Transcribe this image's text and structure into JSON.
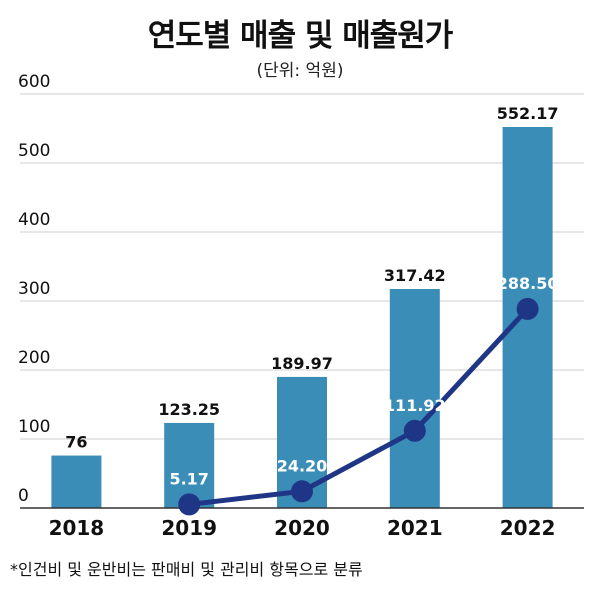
{
  "chart_data": {
    "type": "bar",
    "title": "연도별 매출 및 매출원가",
    "subtitle": "(단위: 억원)",
    "categories": [
      "2018",
      "2019",
      "2020",
      "2021",
      "2022"
    ],
    "series": [
      {
        "name": "",
        "type": "bar",
        "values": [
          76,
          123.25,
          189.97,
          317.42,
          552.17
        ],
        "labels": [
          "76",
          "123.25",
          "189.97",
          "317.42",
          "552.17"
        ]
      },
      {
        "name": "",
        "type": "line",
        "values": [
          null,
          5.17,
          24.2,
          111.92,
          288.5
        ],
        "labels": [
          "",
          "5.17",
          "24.20",
          "111.92",
          "288.50"
        ]
      }
    ],
    "yticks": [
      "0",
      "100",
      "200",
      "300",
      "400",
      "500",
      "600"
    ],
    "ylim": [
      0,
      600
    ],
    "grid": true,
    "colors": {
      "bar": "#3a8db7",
      "line": "#1f3585",
      "bar_label": "#111111",
      "line_label": "#ffffff",
      "grid": "#cfcfcf"
    },
    "footnote": "*인건비 및 운반비는 판매비 및 관리비 항목으로 분류"
  }
}
